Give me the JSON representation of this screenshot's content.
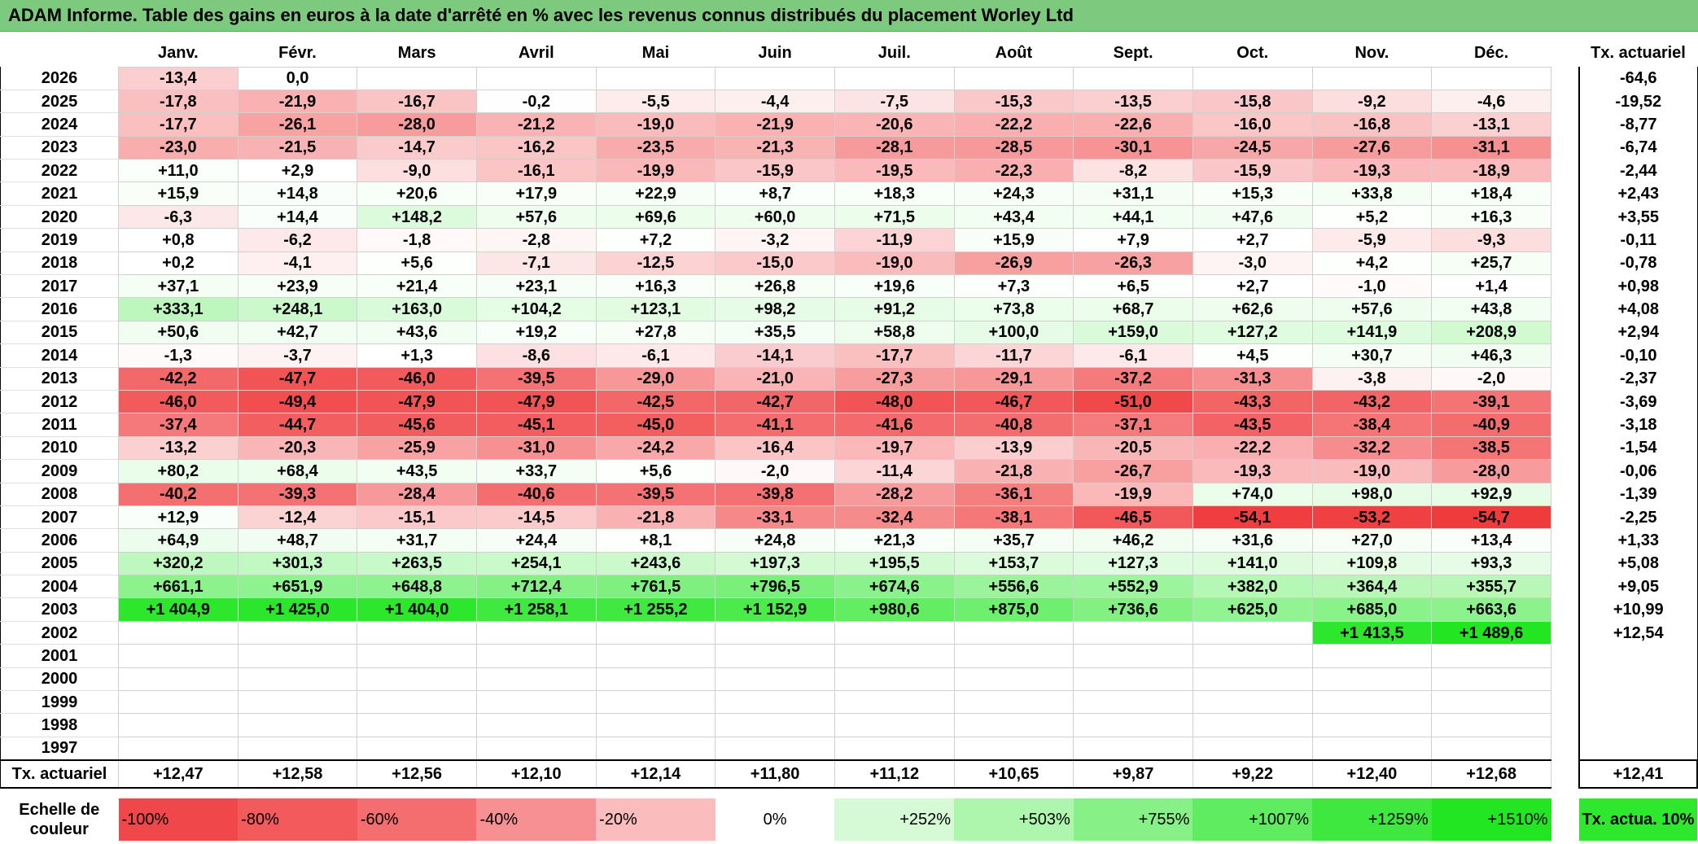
{
  "title": "ADAM Informe. Table des gains en euros à la date d'arrêté en % avec les revenus connus distribués du placement Worley Ltd",
  "months": [
    "Janv.",
    "Févr.",
    "Mars",
    "Avril",
    "Mai",
    "Juin",
    "Juil.",
    "Août",
    "Sept.",
    "Oct.",
    "Nov.",
    "Déc."
  ],
  "tx_header": "Tx. actuariel",
  "rows": [
    {
      "year": "2026",
      "cells": [
        "-13,4",
        "0,0",
        "",
        "",
        "",
        "",
        "",
        "",
        "",
        "",
        "",
        ""
      ],
      "tx": "-64,6"
    },
    {
      "year": "2025",
      "cells": [
        "-17,8",
        "-21,9",
        "-16,7",
        "-0,2",
        "-5,5",
        "-4,4",
        "-7,5",
        "-15,3",
        "-13,5",
        "-15,8",
        "-9,2",
        "-4,6"
      ],
      "tx": "-19,52"
    },
    {
      "year": "2024",
      "cells": [
        "-17,7",
        "-26,1",
        "-28,0",
        "-21,2",
        "-19,0",
        "-21,9",
        "-20,6",
        "-22,2",
        "-22,6",
        "-16,0",
        "-16,8",
        "-13,1"
      ],
      "tx": "-8,77"
    },
    {
      "year": "2023",
      "cells": [
        "-23,0",
        "-21,5",
        "-14,7",
        "-16,2",
        "-23,5",
        "-21,3",
        "-28,1",
        "-28,5",
        "-30,1",
        "-24,5",
        "-27,6",
        "-31,1"
      ],
      "tx": "-6,74"
    },
    {
      "year": "2022",
      "cells": [
        "+11,0",
        "+2,9",
        "-9,0",
        "-16,1",
        "-19,9",
        "-15,9",
        "-19,5",
        "-22,3",
        "-8,2",
        "-15,9",
        "-19,3",
        "-18,9"
      ],
      "tx": "-2,44"
    },
    {
      "year": "2021",
      "cells": [
        "+15,9",
        "+14,8",
        "+20,6",
        "+17,9",
        "+22,9",
        "+8,7",
        "+18,3",
        "+24,3",
        "+31,1",
        "+15,3",
        "+33,8",
        "+18,4"
      ],
      "tx": "+2,43"
    },
    {
      "year": "2020",
      "cells": [
        "-6,3",
        "+14,4",
        "+148,2",
        "+57,6",
        "+69,6",
        "+60,0",
        "+71,5",
        "+43,4",
        "+44,1",
        "+47,6",
        "+5,2",
        "+16,3"
      ],
      "tx": "+3,55"
    },
    {
      "year": "2019",
      "cells": [
        "+0,8",
        "-6,2",
        "-1,8",
        "-2,8",
        "+7,2",
        "-3,2",
        "-11,9",
        "+15,9",
        "+7,9",
        "+2,7",
        "-5,9",
        "-9,3"
      ],
      "tx": "-0,11"
    },
    {
      "year": "2018",
      "cells": [
        "+0,2",
        "-4,1",
        "+5,6",
        "-7,1",
        "-12,5",
        "-15,0",
        "-19,0",
        "-26,9",
        "-26,3",
        "-3,0",
        "+4,2",
        "+25,7"
      ],
      "tx": "-0,78"
    },
    {
      "year": "2017",
      "cells": [
        "+37,1",
        "+23,9",
        "+21,4",
        "+23,1",
        "+16,3",
        "+26,8",
        "+19,6",
        "+7,3",
        "+6,5",
        "+2,7",
        "-1,0",
        "+1,4"
      ],
      "tx": "+0,98"
    },
    {
      "year": "2016",
      "cells": [
        "+333,1",
        "+248,1",
        "+163,0",
        "+104,2",
        "+123,1",
        "+98,2",
        "+91,2",
        "+73,8",
        "+68,7",
        "+62,6",
        "+57,6",
        "+43,8"
      ],
      "tx": "+4,08"
    },
    {
      "year": "2015",
      "cells": [
        "+50,6",
        "+42,7",
        "+43,6",
        "+19,2",
        "+27,8",
        "+35,5",
        "+58,8",
        "+100,0",
        "+159,0",
        "+127,2",
        "+141,9",
        "+208,9"
      ],
      "tx": "+2,94"
    },
    {
      "year": "2014",
      "cells": [
        "-1,3",
        "-3,7",
        "+1,3",
        "-8,6",
        "-6,1",
        "-14,1",
        "-17,7",
        "-11,7",
        "-6,1",
        "+4,5",
        "+30,7",
        "+46,3"
      ],
      "tx": "-0,10"
    },
    {
      "year": "2013",
      "cells": [
        "-42,2",
        "-47,7",
        "-46,0",
        "-39,5",
        "-29,0",
        "-21,0",
        "-27,3",
        "-29,1",
        "-37,2",
        "-31,3",
        "-3,8",
        "-2,0"
      ],
      "tx": "-2,37"
    },
    {
      "year": "2012",
      "cells": [
        "-46,0",
        "-49,4",
        "-47,9",
        "-47,9",
        "-42,5",
        "-42,7",
        "-48,0",
        "-46,7",
        "-51,0",
        "-43,3",
        "-43,2",
        "-39,1"
      ],
      "tx": "-3,69"
    },
    {
      "year": "2011",
      "cells": [
        "-37,4",
        "-44,7",
        "-45,6",
        "-45,1",
        "-45,0",
        "-41,1",
        "-41,6",
        "-40,8",
        "-37,1",
        "-43,5",
        "-38,4",
        "-40,9"
      ],
      "tx": "-3,18"
    },
    {
      "year": "2010",
      "cells": [
        "-13,2",
        "-20,3",
        "-25,9",
        "-31,0",
        "-24,2",
        "-16,4",
        "-19,7",
        "-13,9",
        "-20,5",
        "-22,2",
        "-32,2",
        "-38,5"
      ],
      "tx": "-1,54"
    },
    {
      "year": "2009",
      "cells": [
        "+80,2",
        "+68,4",
        "+43,5",
        "+33,7",
        "+5,6",
        "-2,0",
        "-11,4",
        "-21,8",
        "-26,7",
        "-19,3",
        "-19,0",
        "-28,0"
      ],
      "tx": "-0,06"
    },
    {
      "year": "2008",
      "cells": [
        "-40,2",
        "-39,3",
        "-28,4",
        "-40,6",
        "-39,5",
        "-39,8",
        "-28,2",
        "-36,1",
        "-19,9",
        "+74,0",
        "+98,0",
        "+92,9"
      ],
      "tx": "-1,39"
    },
    {
      "year": "2007",
      "cells": [
        "+12,9",
        "-12,4",
        "-15,1",
        "-14,5",
        "-21,8",
        "-33,1",
        "-32,4",
        "-38,1",
        "-46,5",
        "-54,1",
        "-53,2",
        "-54,7"
      ],
      "tx": "-2,25"
    },
    {
      "year": "2006",
      "cells": [
        "+64,9",
        "+48,7",
        "+31,7",
        "+24,4",
        "+8,1",
        "+24,8",
        "+21,3",
        "+35,7",
        "+46,2",
        "+31,6",
        "+27,0",
        "+13,4"
      ],
      "tx": "+1,33"
    },
    {
      "year": "2005",
      "cells": [
        "+320,2",
        "+301,3",
        "+263,5",
        "+254,1",
        "+243,6",
        "+197,3",
        "+195,5",
        "+153,7",
        "+127,3",
        "+141,0",
        "+109,8",
        "+93,3"
      ],
      "tx": "+5,08"
    },
    {
      "year": "2004",
      "cells": [
        "+661,1",
        "+651,9",
        "+648,8",
        "+712,4",
        "+761,5",
        "+796,5",
        "+674,6",
        "+556,6",
        "+552,9",
        "+382,0",
        "+364,4",
        "+355,7"
      ],
      "tx": "+9,05"
    },
    {
      "year": "2003",
      "cells": [
        "+1 404,9",
        "+1 425,0",
        "+1 404,0",
        "+1 258,1",
        "+1 255,2",
        "+1 152,9",
        "+980,6",
        "+875,0",
        "+736,6",
        "+625,0",
        "+685,0",
        "+663,6"
      ],
      "tx": "+10,99"
    },
    {
      "year": "2002",
      "cells": [
        "",
        "",
        "",
        "",
        "",
        "",
        "",
        "",
        "",
        "",
        "+1 413,5",
        "+1 489,6"
      ],
      "tx": "+12,54"
    },
    {
      "year": "2001",
      "cells": [
        "",
        "",
        "",
        "",
        "",
        "",
        "",
        "",
        "",
        "",
        "",
        ""
      ],
      "tx": ""
    },
    {
      "year": "2000",
      "cells": [
        "",
        "",
        "",
        "",
        "",
        "",
        "",
        "",
        "",
        "",
        "",
        ""
      ],
      "tx": ""
    },
    {
      "year": "1999",
      "cells": [
        "",
        "",
        "",
        "",
        "",
        "",
        "",
        "",
        "",
        "",
        "",
        ""
      ],
      "tx": ""
    },
    {
      "year": "1998",
      "cells": [
        "",
        "",
        "",
        "",
        "",
        "",
        "",
        "",
        "",
        "",
        "",
        ""
      ],
      "tx": ""
    },
    {
      "year": "1997",
      "cells": [
        "",
        "",
        "",
        "",
        "",
        "",
        "",
        "",
        "",
        "",
        "",
        ""
      ],
      "tx": ""
    }
  ],
  "footer": {
    "label": "Tx. actuariel",
    "cells": [
      "+12,47",
      "+12,58",
      "+12,56",
      "+12,10",
      "+12,14",
      "+11,80",
      "+11,12",
      "+10,65",
      "+9,87",
      "+9,22",
      "+12,40",
      "+12,68"
    ],
    "tx": "+12,41"
  },
  "scale": {
    "label": "Echelle de couleur",
    "stops": [
      {
        "text": "-100%",
        "color": "#f0484a"
      },
      {
        "text": "-80%",
        "color": "#f25a5c"
      },
      {
        "text": "-60%",
        "color": "#f46d6f"
      },
      {
        "text": "-40%",
        "color": "#f79092"
      },
      {
        "text": "-20%",
        "color": "#fbbcbd"
      },
      {
        "text": "0%",
        "color": "#ffffff"
      },
      {
        "text": "+252%",
        "color": "#d6f9d6"
      },
      {
        "text": "+503%",
        "color": "#aef5ae"
      },
      {
        "text": "+755%",
        "color": "#87f087"
      },
      {
        "text": "+1007%",
        "color": "#60ec60"
      },
      {
        "text": "+1259%",
        "color": "#3fe83f"
      },
      {
        "text": "+1510%",
        "color": "#22e622"
      }
    ],
    "tx_text": "Tx. actua. 10%"
  }
}
